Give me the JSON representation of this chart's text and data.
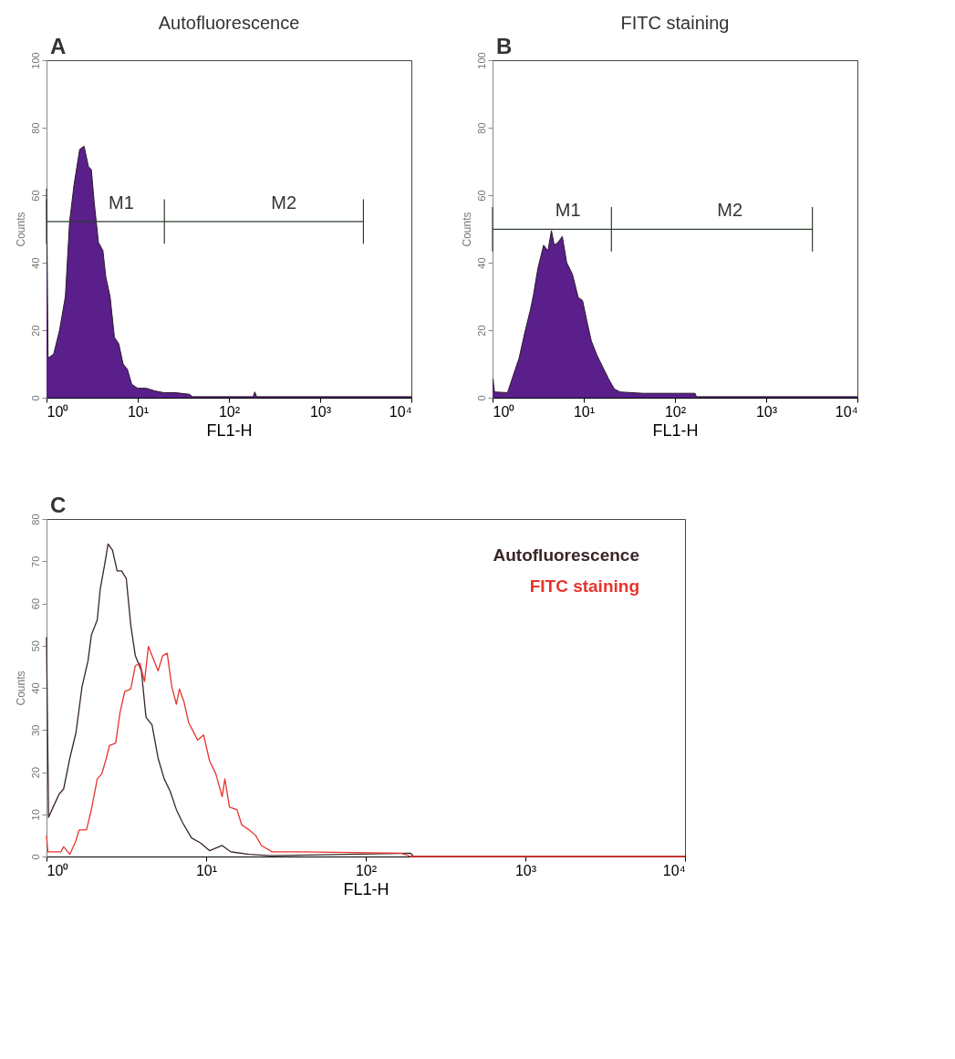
{
  "chart_data": [
    {
      "type": "area",
      "title": "Autofluorescence",
      "xlabel": "FL1-H",
      "ylabel": "Counts",
      "log": "x",
      "grid": false,
      "legend": false,
      "marker": "none",
      "annotations": [
        "A",
        {
          "text": "M1",
          "x": 6.6,
          "y": 52.2
        },
        {
          "text": "M2",
          "x": 400,
          "y": 52.2
        }
      ],
      "xlim": [
        1,
        10000
      ],
      "xticks": [
        {
          "value": 1,
          "label": "10⁰"
        },
        {
          "value": 10,
          "label": "10¹"
        },
        {
          "value": 100,
          "label": "10²"
        },
        {
          "value": 1000,
          "label": "10³"
        },
        {
          "value": 10000,
          "label": "10⁴"
        }
      ],
      "ylim": [
        0,
        100
      ],
      "yticks": [
        0,
        20,
        40,
        60,
        80,
        100
      ],
      "series": [
        {
          "color": "#5a1f8a",
          "x": [
            1,
            1.04,
            1.08,
            1.2,
            1.39,
            1.61,
            1.79,
            2.0,
            2.31,
            2.58,
            2.88,
            3.1,
            3.33,
            3.71,
            4.15,
            4.46,
            4.98,
            5.55,
            6.19,
            6.91,
            7.7,
            8.59,
            9.95,
            12.4,
            15.4,
            19.2,
            25.7,
            37.0,
            39.7,
            184,
            192,
            201,
            10000
          ],
          "values": [
            62,
            12,
            12,
            13,
            20,
            30,
            52,
            63,
            73.6,
            74.5,
            68.5,
            67.6,
            58,
            46,
            43.6,
            35.9,
            29.9,
            17.9,
            16,
            10,
            8.4,
            4,
            2.8,
            2.8,
            2,
            1.5,
            1.5,
            1,
            0.3,
            0.3,
            1.7,
            0.3,
            0.3
          ]
        },
        {
          "type": "line",
          "color": "#2f3f2f",
          "x": [
            1,
            19.6,
            2980
          ],
          "values": [
            52.2,
            52.2,
            52.2
          ],
          "errors": [
            6.6,
            6.6,
            6.6
          ]
        }
      ]
    },
    {
      "type": "area",
      "title": "FITC staining",
      "xlabel": "FL1-H",
      "ylabel": "Counts",
      "log": "x",
      "grid": false,
      "legend": false,
      "marker": "none",
      "annotations": [
        "B",
        {
          "text": "M1",
          "x": 6.7,
          "y": 49.9
        },
        {
          "text": "M2",
          "x": 400,
          "y": 49.9
        }
      ],
      "xlim": [
        1,
        10000
      ],
      "xticks": [
        {
          "value": 1,
          "label": "10⁰"
        },
        {
          "value": 10,
          "label": "10¹"
        },
        {
          "value": 100,
          "label": "10²"
        },
        {
          "value": 1000,
          "label": "10³"
        },
        {
          "value": 10000,
          "label": "10⁴"
        }
      ],
      "ylim": [
        0,
        100
      ],
      "yticks": [
        0,
        20,
        40,
        60,
        80,
        100
      ],
      "series": [
        {
          "color": "#5a1f8a",
          "x": [
            1,
            1.01,
            1.05,
            1.46,
            1.69,
            1.95,
            2.26,
            2.61,
            2.81,
            3.14,
            3.63,
            4.05,
            4.42,
            4.75,
            5.22,
            5.82,
            6.5,
            7.51,
            8.69,
            9.7,
            10.8,
            12.1,
            14.0,
            16.2,
            18.7,
            21.6,
            25.0,
            44.7,
            166,
            172,
            10000
          ],
          "values": [
            5.6,
            5.6,
            1.7,
            1.5,
            6.7,
            11.6,
            19.4,
            26.2,
            30.5,
            38.3,
            45.2,
            43.5,
            49.5,
            45.2,
            46,
            47.8,
            40,
            36.6,
            29.7,
            28.8,
            22.8,
            16.8,
            12.5,
            9,
            5.6,
            2.6,
            1.7,
            1.3,
            1.3,
            0.3,
            0.3
          ]
        },
        {
          "type": "line",
          "color": "#2f3f2f",
          "x": [
            1,
            20.1,
            3210
          ],
          "values": [
            49.9,
            49.9,
            49.9
          ],
          "errors": [
            6.6,
            6.6,
            6.6
          ]
        }
      ]
    },
    {
      "type": "line",
      "xlabel": "FL1-H",
      "ylabel": "Counts",
      "log": "x",
      "grid": false,
      "legend": "top right",
      "marker": "none",
      "annotations": [
        "C"
      ],
      "xlim": [
        1,
        10000
      ],
      "xticks": [
        {
          "value": 1,
          "label": "10⁰"
        },
        {
          "value": 10,
          "label": "10¹"
        },
        {
          "value": 100,
          "label": "10²"
        },
        {
          "value": 1000,
          "label": "10³"
        },
        {
          "value": 10000,
          "label": "10⁴"
        }
      ],
      "ylim": [
        0,
        80
      ],
      "yticks": [
        0,
        10,
        20,
        30,
        40,
        50,
        60,
        70,
        80
      ],
      "series": [
        {
          "name": "Autofluorescence",
          "color": "#3a2528",
          "x": [
            1,
            1.03,
            1.1,
            1.2,
            1.28,
            1.4,
            1.53,
            1.67,
            1.82,
            1.91,
            2.08,
            2.17,
            2.32,
            2.43,
            2.59,
            2.77,
            2.95,
            3.16,
            3.37,
            3.6,
            3.93,
            4.2,
            4.58,
            5.0,
            5.46,
            5.96,
            6.51,
            7.1,
            8.1,
            9.24,
            10.5,
            12.6,
            14.3,
            18.6,
            25.4,
            191,
            199,
            10000
          ],
          "values": [
            52,
            9.3,
            11.7,
            14.8,
            16,
            23.3,
            29.4,
            40.3,
            46.4,
            52.5,
            56.1,
            63.4,
            69.5,
            74.1,
            72.6,
            67.7,
            67.7,
            65.9,
            54.9,
            47.6,
            44,
            33,
            31.2,
            23.3,
            18.4,
            15.4,
            11.1,
            8.1,
            4.4,
            3.2,
            1.4,
            2.6,
            1.1,
            0.5,
            0.2,
            0.8,
            0,
            0
          ]
        },
        {
          "name": "FITC staining",
          "color": "#e8332e",
          "x": [
            1,
            1.02,
            1.23,
            1.28,
            1.4,
            1.53,
            1.6,
            1.78,
            1.91,
            2.08,
            2.22,
            2.37,
            2.48,
            2.71,
            2.89,
            3.09,
            3.37,
            3.6,
            3.85,
            4.11,
            4.35,
            4.58,
            5.0,
            5.34,
            5.7,
            6.09,
            6.51,
            6.8,
            7.26,
            7.76,
            8.85,
            9.65,
            10.5,
            11.5,
            12.6,
            13.1,
            14.0,
            15.6,
            16.7,
            18.6,
            20.4,
            22.2,
            25.9,
            39.3,
            167,
            191,
            10000
          ],
          "values": [
            5,
            1.1,
            1.1,
            2.3,
            0.5,
            3.8,
            6.3,
            6.3,
            11.1,
            18.4,
            19.6,
            23.3,
            26.3,
            26.9,
            34.2,
            39.1,
            39.7,
            45.2,
            45.8,
            41.5,
            49.8,
            47.6,
            44,
            47.6,
            48.2,
            40.3,
            36.1,
            39.7,
            36.7,
            31.8,
            27.6,
            28.8,
            22.7,
            19.6,
            14.2,
            18.4,
            11.7,
            11.1,
            7.5,
            6.3,
            5,
            2.6,
            1.1,
            1.1,
            0.8,
            0,
            0
          ]
        }
      ]
    }
  ]
}
